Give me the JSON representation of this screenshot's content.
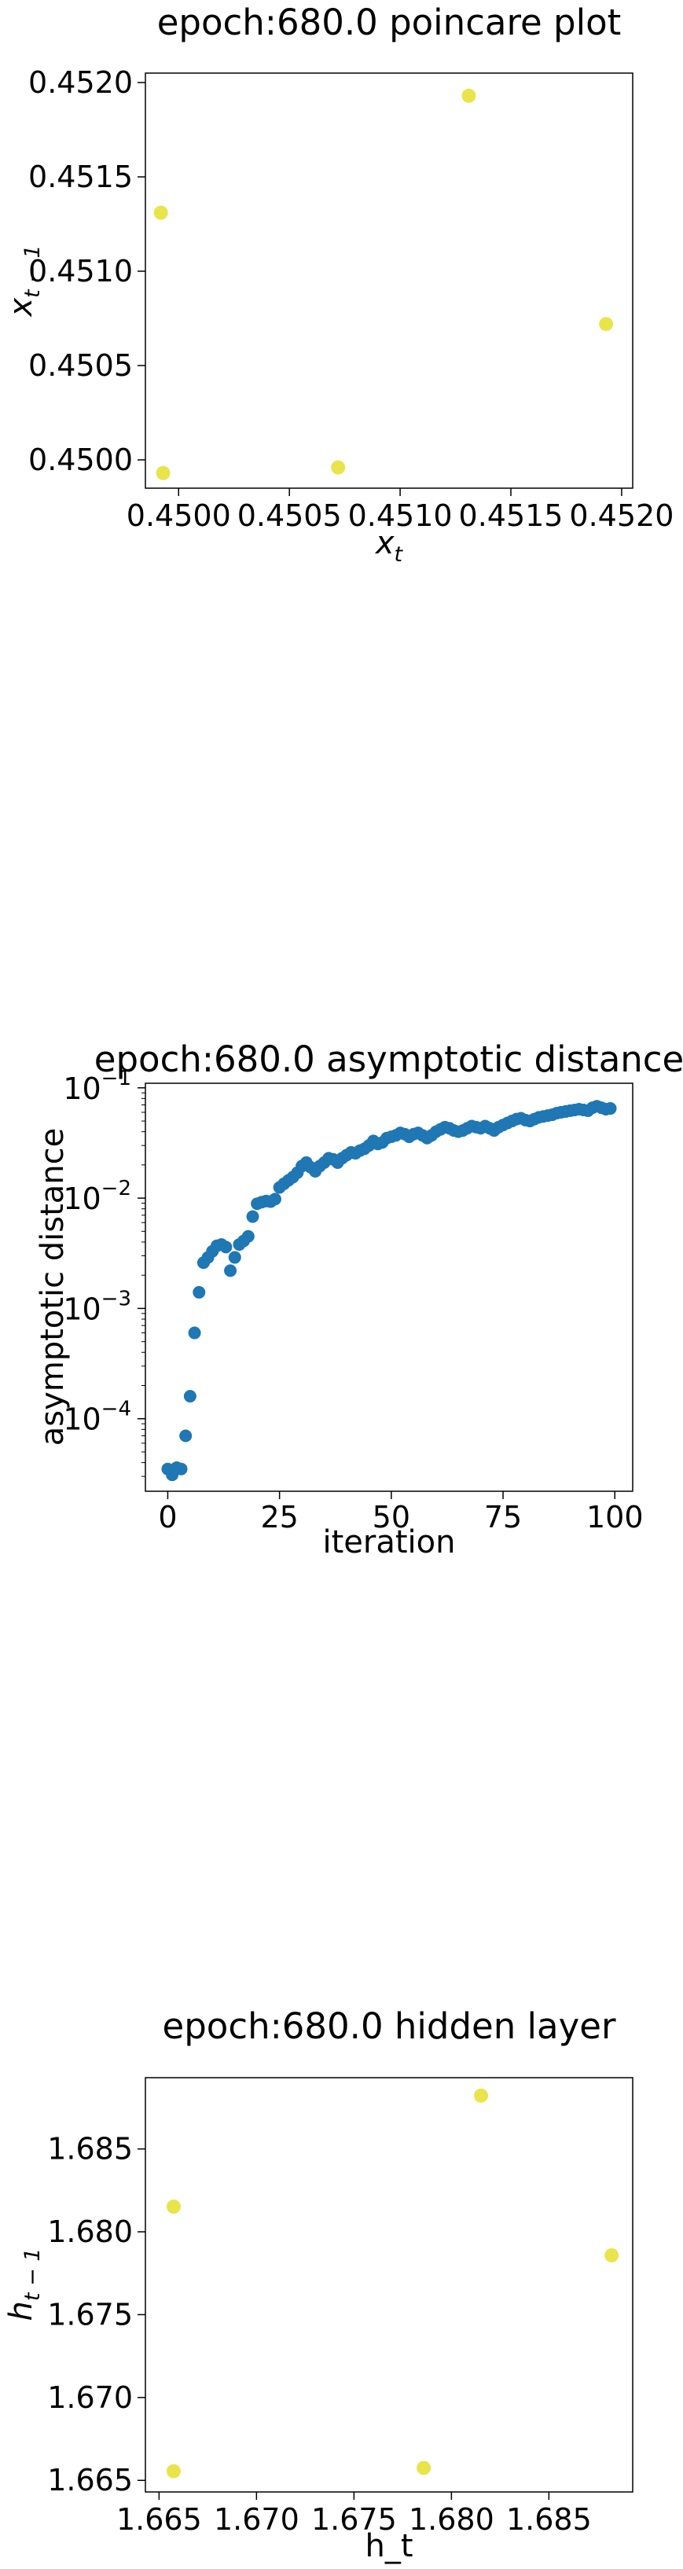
{
  "chart_data": [
    {
      "type": "scatter",
      "title": "epoch:680.0 poincare plot",
      "xlabel_main": "x",
      "xlabel_sub": "t",
      "ylabel_main": "x",
      "ylabel_sub": "t − 1",
      "xlim": [
        0.44985,
        0.45205
      ],
      "ylim": [
        0.44985,
        0.45205
      ],
      "xticks": [
        0.45,
        0.4505,
        0.451,
        0.4515,
        0.452
      ],
      "xtick_labels": [
        "0.4500",
        "0.4505",
        "0.4510",
        "0.4515",
        "0.4520"
      ],
      "yticks": [
        0.45,
        0.4505,
        0.451,
        0.4515,
        0.452
      ],
      "ytick_labels": [
        "0.4500",
        "0.4505",
        "0.4510",
        "0.4515",
        "0.4520"
      ],
      "point_color": "#e8e340",
      "points": [
        {
          "x": 0.44992,
          "y": 0.45131
        },
        {
          "x": 0.44993,
          "y": 0.44993
        },
        {
          "x": 0.45072,
          "y": 0.44996
        },
        {
          "x": 0.45131,
          "y": 0.45193
        },
        {
          "x": 0.45193,
          "y": 0.45072
        }
      ]
    },
    {
      "type": "scatter",
      "title": "epoch:680.0 asymptotic distance",
      "xlabel": "iteration",
      "ylabel": "asymptotic distance",
      "yscale": "log",
      "xlim": [
        -5,
        104
      ],
      "ylim": [
        2.2e-05,
        0.11
      ],
      "xticks": [
        0,
        25,
        50,
        75,
        100
      ],
      "xtick_labels": [
        "0",
        "25",
        "50",
        "75",
        "100"
      ],
      "yticks": [
        0.0001,
        0.001,
        0.01,
        0.1
      ],
      "ytick_labels": [
        {
          "base": "10",
          "exp": "−4"
        },
        {
          "base": "10",
          "exp": "−3"
        },
        {
          "base": "10",
          "exp": "−2"
        },
        {
          "base": "10",
          "exp": "−1"
        }
      ],
      "point_color": "#1f77b4",
      "x": [
        0,
        1,
        2,
        3,
        4,
        5,
        6,
        7,
        8,
        9,
        10,
        11,
        12,
        13,
        14,
        15,
        16,
        17,
        18,
        19,
        20,
        21,
        22,
        23,
        24,
        25,
        26,
        27,
        28,
        29,
        30,
        31,
        32,
        33,
        34,
        35,
        36,
        37,
        38,
        39,
        40,
        41,
        42,
        43,
        44,
        45,
        46,
        47,
        48,
        49,
        50,
        51,
        52,
        53,
        54,
        55,
        56,
        57,
        58,
        59,
        60,
        61,
        62,
        63,
        64,
        65,
        66,
        67,
        68,
        69,
        70,
        71,
        72,
        73,
        74,
        75,
        76,
        77,
        78,
        79,
        80,
        81,
        82,
        83,
        84,
        85,
        86,
        87,
        88,
        89,
        90,
        91,
        92,
        93,
        94,
        95,
        96,
        97,
        98,
        99
      ],
      "y": [
        3.5e-05,
        3.1e-05,
        3.6e-05,
        3.5e-05,
        7e-05,
        0.00016,
        0.0006,
        0.0014,
        0.0026,
        0.0029,
        0.0033,
        0.0037,
        0.0038,
        0.0036,
        0.0022,
        0.0029,
        0.0038,
        0.0041,
        0.0045,
        0.0068,
        0.0089,
        0.0092,
        0.0094,
        0.0093,
        0.0098,
        0.0125,
        0.0135,
        0.0145,
        0.0155,
        0.017,
        0.0195,
        0.021,
        0.019,
        0.0175,
        0.0195,
        0.021,
        0.023,
        0.0225,
        0.021,
        0.023,
        0.0245,
        0.026,
        0.0255,
        0.027,
        0.028,
        0.03,
        0.033,
        0.031,
        0.032,
        0.035,
        0.036,
        0.037,
        0.039,
        0.038,
        0.036,
        0.038,
        0.039,
        0.037,
        0.035,
        0.037,
        0.04,
        0.042,
        0.044,
        0.043,
        0.041,
        0.04,
        0.041,
        0.043,
        0.045,
        0.044,
        0.043,
        0.045,
        0.043,
        0.041,
        0.044,
        0.046,
        0.048,
        0.05,
        0.052,
        0.053,
        0.051,
        0.05,
        0.052,
        0.054,
        0.055,
        0.056,
        0.057,
        0.059,
        0.06,
        0.061,
        0.062,
        0.063,
        0.064,
        0.063,
        0.062,
        0.066,
        0.068,
        0.066,
        0.064,
        0.065
      ]
    },
    {
      "type": "scatter",
      "title": "epoch:680.0 hidden layer",
      "xlabel": "h_t",
      "ylabel_main": "h",
      "ylabel_sub": "t − 1",
      "xlim": [
        1.6643,
        1.6893
      ],
      "ylim": [
        1.6643,
        1.6893
      ],
      "xticks": [
        1.665,
        1.67,
        1.675,
        1.68,
        1.685
      ],
      "xtick_labels": [
        "1.665",
        "1.670",
        "1.675",
        "1.680",
        "1.685"
      ],
      "yticks": [
        1.665,
        1.67,
        1.675,
        1.68,
        1.685
      ],
      "ytick_labels": [
        "1.665",
        "1.670",
        "1.675",
        "1.680",
        "1.685"
      ],
      "point_color": "#e8e340",
      "points": [
        {
          "x": 1.66575,
          "y": 1.68152
        },
        {
          "x": 1.66575,
          "y": 1.66555
        },
        {
          "x": 1.67858,
          "y": 1.66575
        },
        {
          "x": 1.68152,
          "y": 1.68822
        },
        {
          "x": 1.68822,
          "y": 1.67858
        }
      ]
    }
  ]
}
